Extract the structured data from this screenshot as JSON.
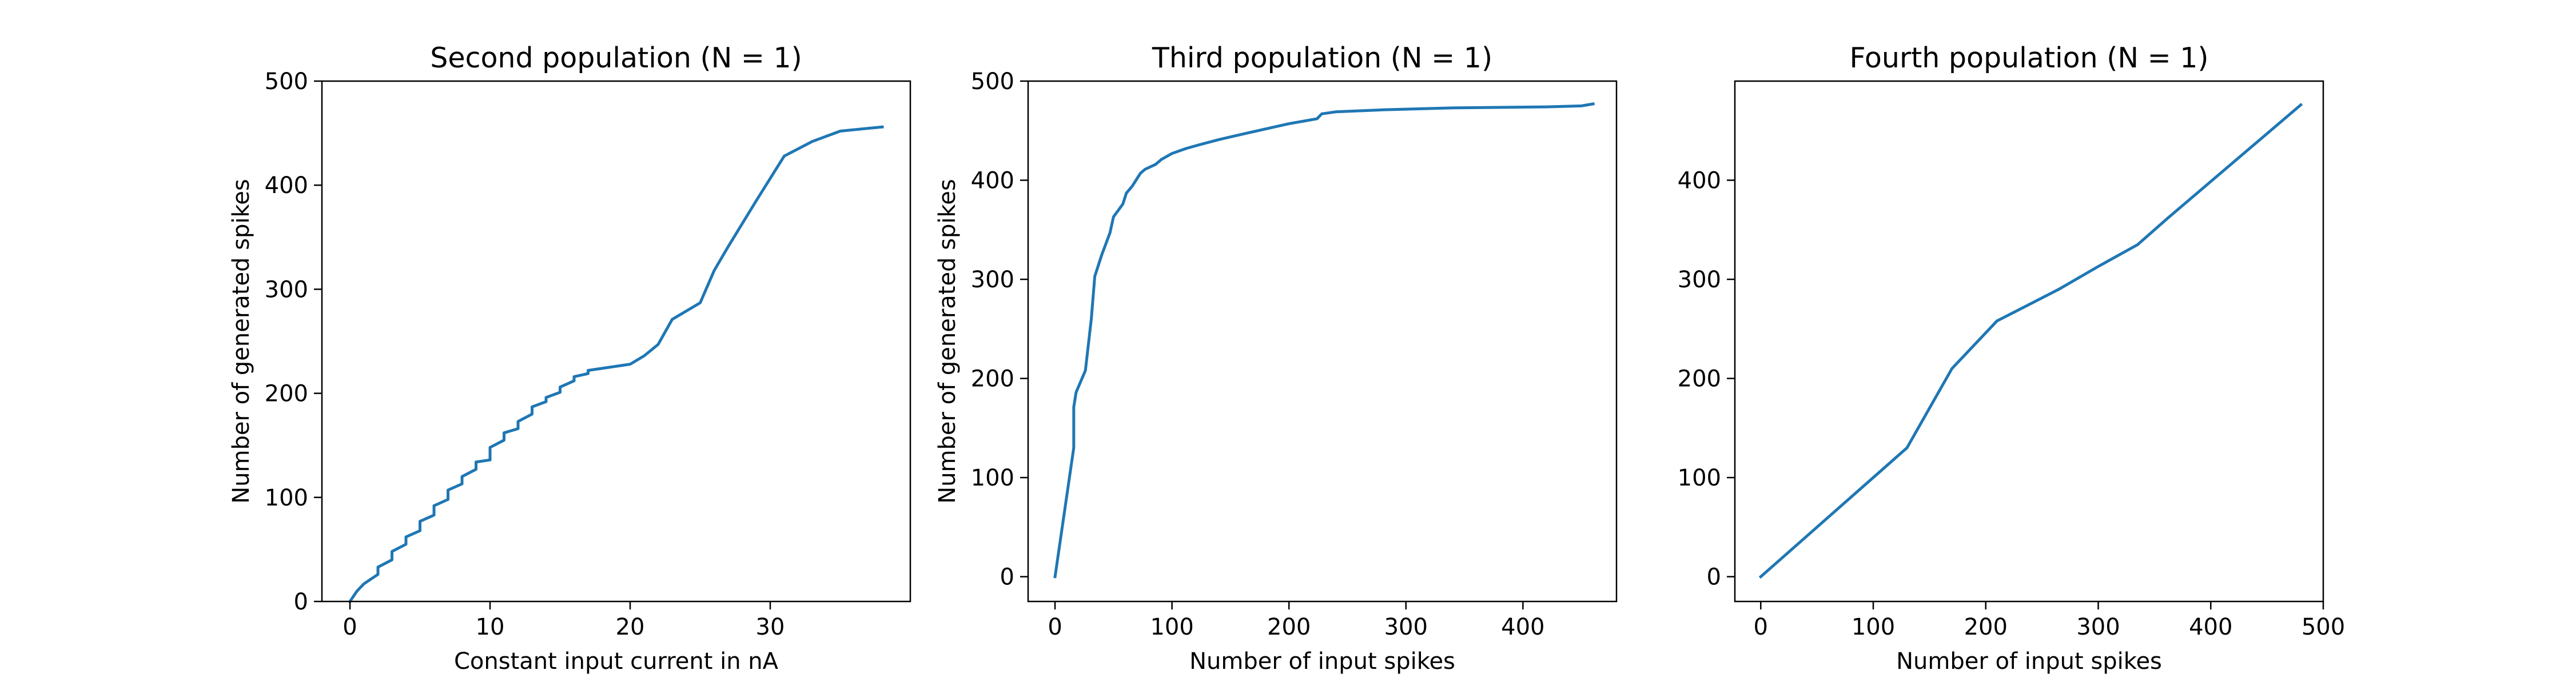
{
  "chart_data": [
    {
      "type": "line",
      "title": "Second population (N = 1)",
      "xlabel": "Constant input current in nA",
      "ylabel": "Number of generated spikes",
      "xlim": [
        -2,
        40
      ],
      "ylim": [
        0,
        500
      ],
      "xticks": [
        0,
        10,
        20,
        30
      ],
      "yticks": [
        0,
        100,
        200,
        300,
        400,
        500
      ],
      "grid": false,
      "series": [
        {
          "color": "#1f77b4",
          "x": [
            0,
            0.5,
            1,
            2,
            2,
            3,
            3,
            4,
            4,
            5,
            5,
            6,
            6,
            7,
            7,
            8,
            8,
            9,
            9,
            10,
            10,
            11,
            11,
            12,
            12,
            13,
            13,
            14,
            14,
            15,
            15,
            16,
            16,
            17,
            17,
            20,
            21,
            22,
            23,
            25,
            26,
            27,
            29,
            31,
            33,
            35,
            38
          ],
          "y": [
            0,
            10,
            17,
            26,
            33,
            40,
            48,
            55,
            62,
            68,
            77,
            83,
            92,
            98,
            107,
            113,
            120,
            127,
            134,
            136,
            148,
            155,
            162,
            166,
            173,
            180,
            187,
            192,
            196,
            201,
            206,
            212,
            216,
            219,
            222,
            228,
            236,
            247,
            271,
            287,
            318,
            341,
            385,
            428,
            442,
            452,
            456
          ]
        }
      ]
    },
    {
      "type": "line",
      "title": "Third population (N = 1)",
      "xlabel": "Number of input spikes",
      "ylabel": "Number of generated spikes",
      "xlim": [
        -23,
        480
      ],
      "ylim": [
        -25,
        500
      ],
      "xticks": [
        0,
        100,
        200,
        300,
        400
      ],
      "yticks": [
        0,
        100,
        200,
        300,
        400,
        500
      ],
      "grid": false,
      "series": [
        {
          "color": "#1f77b4",
          "x": [
            0,
            16,
            16,
            18,
            26,
            31,
            34,
            40,
            47,
            50,
            58,
            61,
            66,
            73,
            77,
            86,
            91,
            100,
            112,
            124,
            140,
            166,
            200,
            224,
            228,
            240,
            280,
            340,
            420,
            450,
            460
          ],
          "y": [
            0,
            130,
            171,
            186,
            208,
            260,
            303,
            325,
            347,
            363,
            376,
            387,
            394,
            407,
            411,
            416,
            421,
            427,
            432,
            436,
            441,
            448,
            457,
            462,
            467,
            469,
            471,
            473,
            474,
            475,
            477
          ]
        }
      ]
    },
    {
      "type": "line",
      "title": "Fourth population (N = 1)",
      "xlabel": "Number of input spikes",
      "ylabel": "",
      "xlim": [
        -23,
        500
      ],
      "ylim": [
        -25,
        500
      ],
      "xticks": [
        0,
        100,
        200,
        300,
        400,
        500
      ],
      "yticks": [
        0,
        100,
        200,
        300,
        400
      ],
      "grid": false,
      "series": [
        {
          "color": "#1f77b4",
          "x": [
            0,
            130,
            170,
            210,
            265,
            300,
            335,
            362,
            480
          ],
          "y": [
            0,
            130,
            210,
            258,
            290,
            313,
            335,
            362,
            476
          ]
        }
      ]
    }
  ]
}
